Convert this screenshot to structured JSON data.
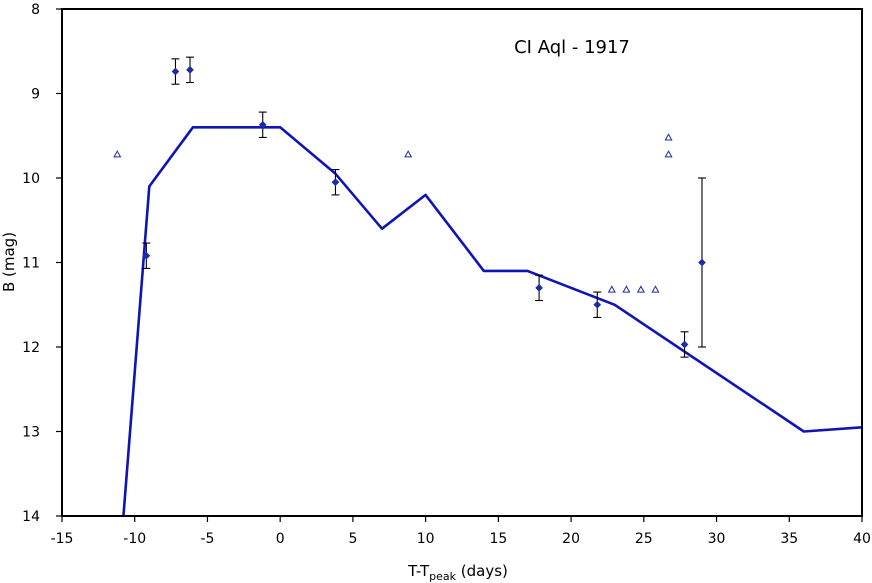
{
  "chart_data": {
    "type": "line",
    "title": "CI Aql - 1917",
    "xlabel": {
      "main": "T-T",
      "sub": "peak",
      "suffix": " (days)"
    },
    "ylabel": "B (mag)",
    "xlim": [
      -15,
      40
    ],
    "ylim": [
      8,
      14
    ],
    "y_inverted": true,
    "grid": false,
    "xticks": [
      -15,
      -10,
      -5,
      0,
      5,
      10,
      15,
      20,
      25,
      30,
      35,
      40
    ],
    "yticks": [
      8,
      9,
      10,
      11,
      12,
      13,
      14
    ],
    "series": [
      {
        "name": "template",
        "kind": "line",
        "color": "#0f14b4",
        "x": [
          -10.8,
          -9.0,
          -6.0,
          0.0,
          3.8,
          7.0,
          10.0,
          14.0,
          17.0,
          23.0,
          36.0,
          40.0
        ],
        "y": [
          14.05,
          10.1,
          9.4,
          9.4,
          9.95,
          10.6,
          10.2,
          11.1,
          11.1,
          11.5,
          13.0,
          12.95
        ]
      },
      {
        "name": "observations",
        "kind": "points-errorbars",
        "color": "#1f2aa8",
        "points": [
          {
            "x": -9.2,
            "y": 10.92,
            "err": 0.15
          },
          {
            "x": -7.2,
            "y": 8.74,
            "err": 0.15
          },
          {
            "x": -6.2,
            "y": 8.72,
            "err": 0.15
          },
          {
            "x": -1.2,
            "y": 9.37,
            "err": 0.15
          },
          {
            "x": 3.8,
            "y": 10.05,
            "err": 0.15
          },
          {
            "x": 17.8,
            "y": 11.3,
            "err": 0.15
          },
          {
            "x": 21.8,
            "y": 11.5,
            "err": 0.15
          },
          {
            "x": 27.8,
            "y": 11.97,
            "err": 0.15
          },
          {
            "x": 29.0,
            "y": 11.0,
            "err": 1.0
          }
        ]
      },
      {
        "name": "limits",
        "kind": "open-triangles",
        "color": "#1f2aa8",
        "x": [
          -11.2,
          8.8,
          22.8,
          23.8,
          24.8,
          25.8,
          26.7,
          26.7
        ],
        "y": [
          9.72,
          9.72,
          11.32,
          11.32,
          11.32,
          11.32,
          9.52,
          9.72
        ]
      }
    ]
  }
}
